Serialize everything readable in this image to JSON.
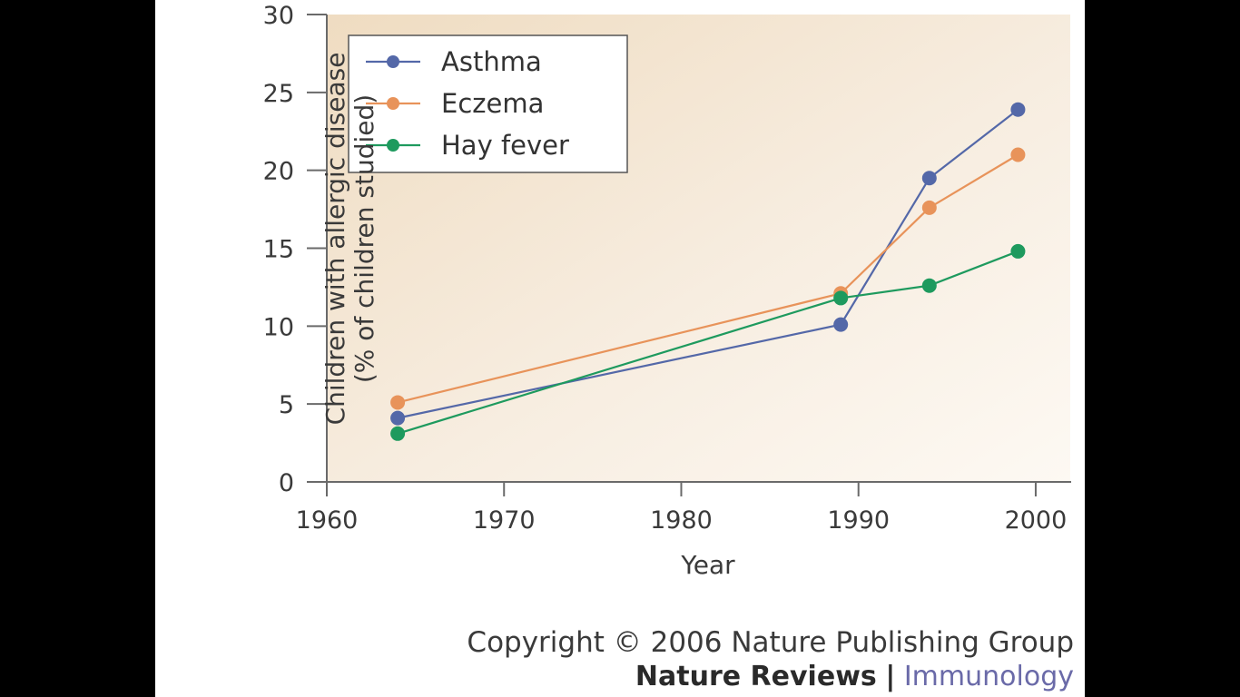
{
  "chart_data": {
    "type": "line",
    "title": "",
    "xlabel": "Year",
    "ylabel_line1": "Children with allergic disease",
    "ylabel_line2": "(% of children studied)",
    "xlim": [
      1960,
      2002
    ],
    "ylim": [
      0,
      30
    ],
    "xticks": [
      1960,
      1970,
      1980,
      1990,
      2000
    ],
    "yticks": [
      0,
      5,
      10,
      15,
      20,
      25,
      30
    ],
    "grid": false,
    "legend_position": "top-left",
    "series": [
      {
        "name": "Asthma",
        "color": "#5468a8",
        "x": [
          1964,
          1989,
          1994,
          1999
        ],
        "y": [
          4.1,
          10.1,
          19.5,
          23.9
        ]
      },
      {
        "name": "Eczema",
        "color": "#e8935a",
        "x": [
          1964,
          1989,
          1994,
          1999
        ],
        "y": [
          5.1,
          12.1,
          17.6,
          21.0
        ]
      },
      {
        "name": "Hay fever",
        "color": "#1e9a5e",
        "x": [
          1964,
          1989,
          1994,
          1999
        ],
        "y": [
          3.1,
          11.8,
          12.6,
          14.8
        ]
      }
    ]
  },
  "footer": {
    "copyright": "Copyright © 2006 Nature Publishing Group",
    "journal_bold": "Nature Reviews",
    "separator": "|",
    "journal_name": "Immunology"
  }
}
